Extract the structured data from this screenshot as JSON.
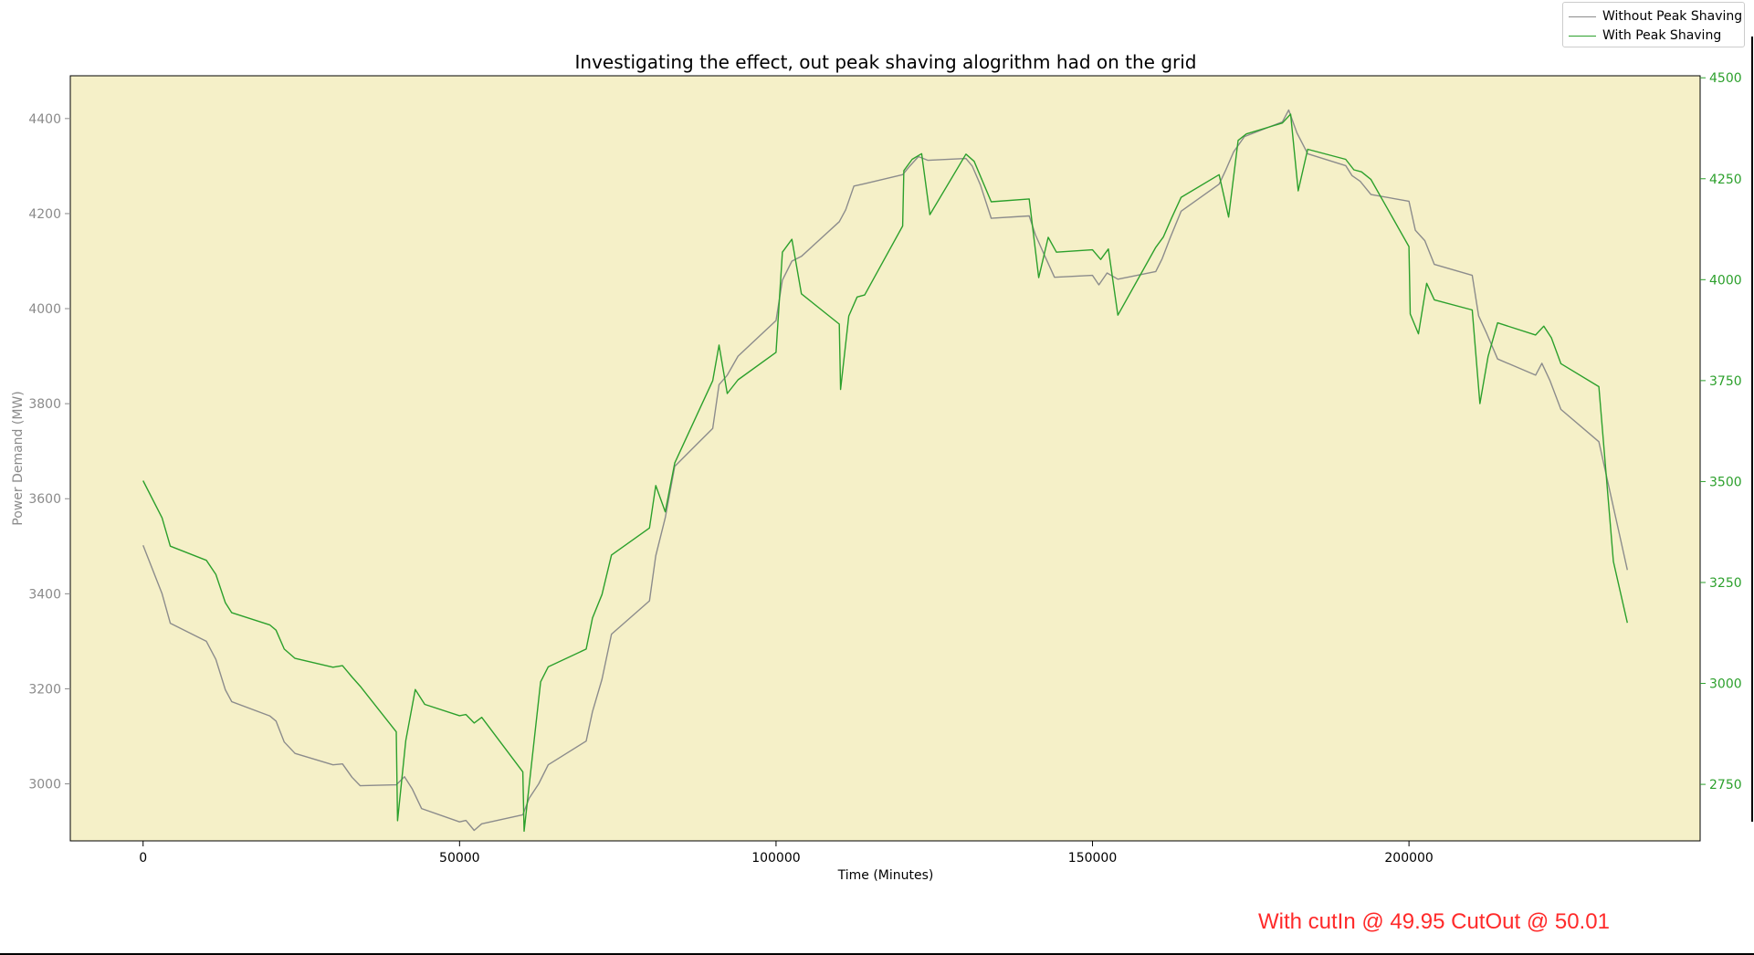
{
  "chart_data": {
    "type": "line",
    "title": "Investigating the effect, out peak shaving alogrithm had on the grid",
    "xlabel": "Time (Minutes)",
    "ylabel_left": "Power Demand (MW)",
    "ylabel_right": "",
    "xlim": [
      -11500,
      246000
    ],
    "ylim_left": [
      2880,
      4490
    ],
    "ylim_right": [
      2610,
      4505
    ],
    "x_ticks": [
      0,
      50000,
      100000,
      150000,
      200000
    ],
    "y_ticks_left": [
      3000,
      3200,
      3400,
      3600,
      3800,
      4000,
      4200,
      4400
    ],
    "y_ticks_right": [
      2750,
      3000,
      3250,
      3500,
      3750,
      4000,
      4250,
      4500
    ],
    "legend_position": "top-right",
    "background": "#f5f0c8",
    "series": [
      {
        "name": "Without Peak Shaving",
        "axis": "left",
        "color": "#8c8c8c",
        "x": [
          0,
          3000,
          4300,
          10000,
          11500,
          13000,
          14000,
          20000,
          21000,
          22300,
          24000,
          30000,
          31500,
          33000,
          34300,
          40000,
          41300,
          42500,
          44000,
          50000,
          51000,
          52300,
          53500,
          60000,
          61000,
          62500,
          64000,
          70000,
          71000,
          72500,
          74000,
          80000,
          81000,
          82500,
          84000,
          90000,
          91000,
          92300,
          94000,
          100000,
          101000,
          102500,
          104000,
          110000,
          111000,
          112300,
          114000,
          120000,
          121000,
          122500,
          124000,
          130000,
          131000,
          132300,
          134000,
          140000,
          141000,
          142500,
          144000,
          150000,
          151000,
          152300,
          154000,
          160000,
          161000,
          162300,
          164000,
          170000,
          171000,
          172300,
          174000,
          180000,
          181000,
          182300,
          184000,
          190000,
          191000,
          192300,
          194000,
          200000,
          201000,
          202500,
          204000,
          210000,
          211000,
          212300,
          214000,
          220000,
          221000,
          222300,
          224000,
          230000,
          234500
        ],
        "values": [
          3502,
          3400,
          3338,
          3300,
          3262,
          3198,
          3173,
          3143,
          3132,
          3088,
          3064,
          3040,
          3042,
          3014,
          2996,
          2998,
          3015,
          2990,
          2948,
          2920,
          2923,
          2902,
          2916,
          2935,
          2970,
          3000,
          3040,
          3090,
          3152,
          3220,
          3315,
          3385,
          3480,
          3560,
          3668,
          3748,
          3840,
          3860,
          3900,
          3975,
          4060,
          4100,
          4110,
          4183,
          4208,
          4258,
          4263,
          4282,
          4298,
          4320,
          4312,
          4316,
          4300,
          4260,
          4190,
          4195,
          4155,
          4110,
          4066,
          4070,
          4050,
          4075,
          4062,
          4078,
          4105,
          4150,
          4205,
          4262,
          4290,
          4330,
          4362,
          4393,
          4418,
          4370,
          4326,
          4301,
          4280,
          4268,
          4240,
          4226,
          4165,
          4143,
          4093,
          4070,
          3985,
          3947,
          3894,
          3860,
          3885,
          3848,
          3788,
          3720,
          3450
        ]
      },
      {
        "name": "With Peak Shaving",
        "axis": "right",
        "color": "#2ca02c",
        "x": [
          0,
          3000,
          4300,
          10000,
          11500,
          13000,
          14000,
          20000,
          21000,
          22300,
          24000,
          30000,
          31500,
          33000,
          34300,
          40000,
          40200,
          41500,
          43000,
          44500,
          50000,
          51000,
          52300,
          53500,
          60000,
          60200,
          62800,
          64000,
          70000,
          71000,
          72500,
          74000,
          80000,
          81000,
          82500,
          84000,
          90000,
          91000,
          92300,
          94000,
          100000,
          101000,
          102500,
          104000,
          110000,
          110200,
          111500,
          112800,
          114000,
          120000,
          120200,
          121500,
          123000,
          124300,
          130000,
          131300,
          134000,
          140000,
          141500,
          143000,
          144300,
          150000,
          151300,
          152500,
          154000,
          160000,
          161200,
          162500,
          164000,
          170000,
          171500,
          173000,
          174300,
          180000,
          181300,
          182500,
          184000,
          190000,
          191300,
          192500,
          194000,
          200000,
          200200,
          201500,
          202800,
          204000,
          210000,
          211200,
          212500,
          214000,
          220000,
          221300,
          222500,
          224000,
          230000,
          232300,
          234500
        ],
        "values": [
          3502,
          3410,
          3340,
          3305,
          3270,
          3200,
          3175,
          3145,
          3132,
          3085,
          3062,
          3040,
          3044,
          3016,
          2993,
          2880,
          2660,
          2858,
          2985,
          2948,
          2920,
          2923,
          2902,
          2916,
          2781,
          2634,
          3004,
          3041,
          3085,
          3162,
          3220,
          3318,
          3385,
          3490,
          3425,
          3546,
          3750,
          3838,
          3718,
          3752,
          3820,
          4068,
          4100,
          3965,
          3890,
          3728,
          3910,
          3957,
          3962,
          4133,
          4270,
          4298,
          4312,
          4161,
          4311,
          4293,
          4193,
          4200,
          4005,
          4105,
          4068,
          4074,
          4050,
          4076,
          3912,
          4080,
          4106,
          4153,
          4204,
          4260,
          4155,
          4345,
          4361,
          4388,
          4410,
          4220,
          4323,
          4298,
          4272,
          4267,
          4248,
          4082,
          3915,
          3866,
          3991,
          3950,
          3925,
          3693,
          3810,
          3893,
          3863,
          3885,
          3856,
          3792,
          3735,
          3302,
          3150
        ]
      }
    ]
  },
  "legend": {
    "items": [
      {
        "label": "Without Peak Shaving",
        "color": "#8c8c8c"
      },
      {
        "label": "With Peak Shaving",
        "color": "#2ca02c"
      }
    ]
  },
  "annotation": {
    "text": "With cutIn @ 49.95 CutOut @ 50.01",
    "color": "#ff2a2a"
  }
}
